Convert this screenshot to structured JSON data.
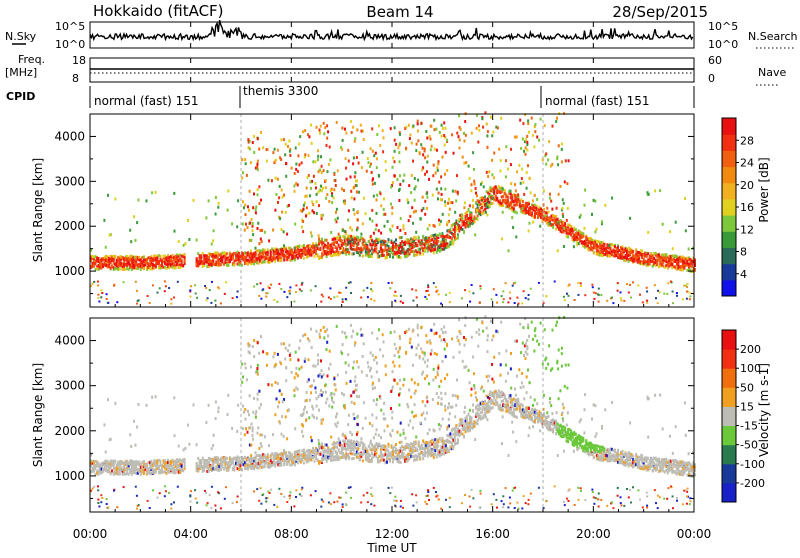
{
  "header": {
    "station": "Hokkaido (fitACF)",
    "beam": "Beam 14",
    "date": "28/Sep/2015"
  },
  "strip": {
    "nsky_label": "N.Sky",
    "nsky_ticks": [
      "10^5",
      "10^0"
    ],
    "nsearch_label": "N.Search",
    "freq_label_line1": "Freq.",
    "freq_label_line2": "[MHz]",
    "freq_ticks": [
      "18",
      "8"
    ],
    "nave_ticks": [
      "60",
      "0"
    ],
    "nave_label": "Nave",
    "cpid_label": "CPID",
    "cpid_modes": [
      "normal (fast) 151",
      "themis 3300",
      "normal (fast) 151"
    ]
  },
  "x_axis": {
    "label": "Time UT",
    "ticks": [
      "00:00",
      "04:00",
      "08:00",
      "12:00",
      "16:00",
      "20:00",
      "00:00"
    ]
  },
  "power_colorbar": {
    "label": "Power [dB]",
    "ticks": [
      "28",
      "24",
      "20",
      "16",
      "12",
      "8",
      "4"
    ],
    "colors": [
      "#1010e8",
      "#1a3a9a",
      "#2a6a58",
      "#3a9a3a",
      "#7cc83a",
      "#e0d020",
      "#f0b020",
      "#f08a10",
      "#f06010",
      "#f03010",
      "#e81010"
    ]
  },
  "velocity_colorbar": {
    "label": "Velocity [m s-1]",
    "ticks": [
      "200",
      "100",
      "50",
      "15",
      "-15",
      "-50",
      "-100",
      "-200"
    ],
    "colors": [
      "#1820c8",
      "#1a3a9a",
      "#2a7a50",
      "#6ac83a",
      "#bdbdb5",
      "#f0a020",
      "#f07010",
      "#f03010",
      "#e81010"
    ]
  },
  "chart_data": [
    {
      "type": "heatmap",
      "title": "Power",
      "ylabel": "Slant Range [km]",
      "xlabel": "Time UT",
      "xlim": [
        0,
        24
      ],
      "ylim": [
        200,
        4500
      ],
      "yticks": [
        1000,
        2000,
        3000,
        4000
      ],
      "xticks": [
        0,
        4,
        8,
        12,
        16,
        20,
        24
      ],
      "colorbar_range": [
        0,
        30
      ],
      "main_echo_band": {
        "time_hours": [
          0,
          2,
          4,
          6,
          8,
          10,
          12,
          14,
          15.5,
          16,
          18,
          20,
          22,
          24
        ],
        "range_km": [
          1150,
          1150,
          1200,
          1250,
          1350,
          1550,
          1450,
          1600,
          2400,
          2700,
          2200,
          1500,
          1250,
          1100
        ]
      }
    },
    {
      "type": "heatmap",
      "title": "Velocity",
      "ylabel": "Slant Range [km]",
      "xlabel": "Time UT",
      "xlim": [
        0,
        24
      ],
      "ylim": [
        200,
        4500
      ],
      "yticks": [
        1000,
        2000,
        3000,
        4000
      ],
      "xticks": [
        0,
        4,
        8,
        12,
        16,
        20,
        24
      ],
      "colorbar_range": [
        -200,
        200
      ]
    }
  ]
}
